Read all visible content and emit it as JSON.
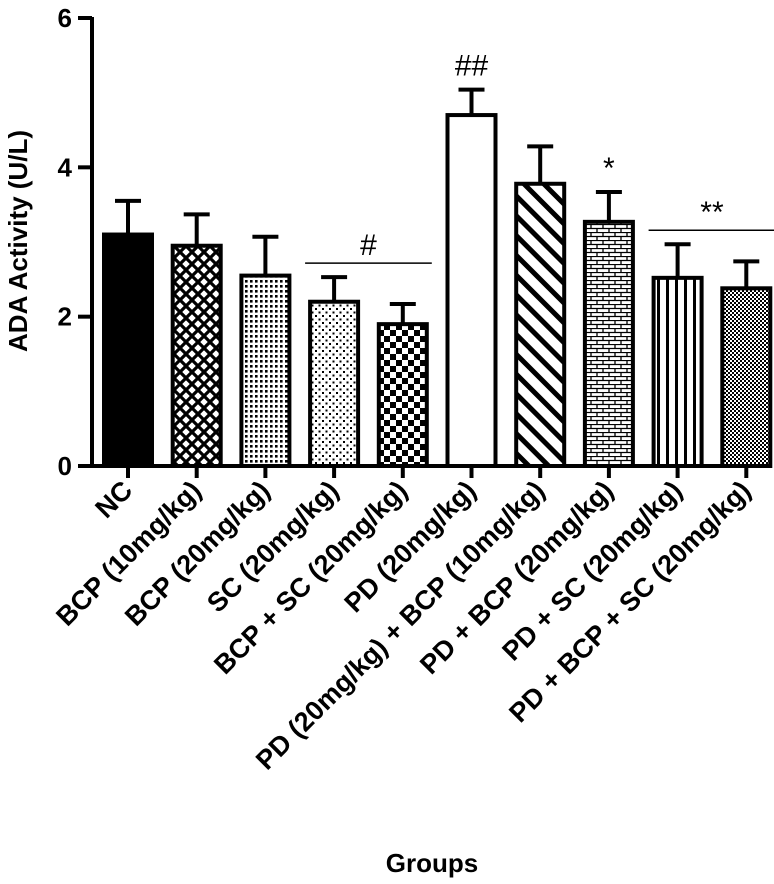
{
  "chart_data": {
    "type": "bar",
    "xlabel": "Groups",
    "ylabel": "ADA Activity (U/L)",
    "ylim": [
      0,
      6
    ],
    "yticks": [
      0,
      2,
      4,
      6
    ],
    "categories": [
      "NC",
      "BCP (10mg/kg)",
      "BCP (20mg/kg)",
      "SC (20mg/kg)",
      "BCP + SC (20mg/kg)",
      "PD (20mg/kg)",
      "PD (20mg/kg) + BCP (10mg/kg)",
      "PD + BCP (20mg/kg)",
      "PD + SC (20mg/kg)",
      "PD + BCP + SC (20mg/kg)"
    ],
    "values": [
      3.1,
      2.95,
      2.55,
      2.2,
      1.9,
      4.7,
      3.78,
      3.27,
      2.52,
      2.38
    ],
    "errors": [
      0.45,
      0.42,
      0.52,
      0.33,
      0.27,
      0.34,
      0.5,
      0.4,
      0.45,
      0.36
    ],
    "fill_patterns": [
      "solid",
      "diamond-check",
      "fine-dots",
      "sparse-dots",
      "checker",
      "empty",
      "diagonal-stripes",
      "bricks",
      "vertical-stripes",
      "fine-checker"
    ],
    "annotations": [
      {
        "text": "#",
        "groups": [
          3,
          4
        ]
      },
      {
        "text": "##",
        "groups": [
          5
        ]
      },
      {
        "text": "*",
        "groups": [
          7
        ]
      },
      {
        "text": "**",
        "groups": [
          8,
          9
        ]
      }
    ],
    "grid": false,
    "legend": "none"
  }
}
